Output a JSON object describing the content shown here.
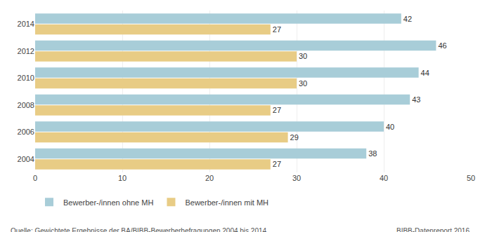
{
  "chart_data": {
    "type": "bar",
    "orientation": "horizontal",
    "categories": [
      "2014",
      "2012",
      "2010",
      "2008",
      "2006",
      "2004"
    ],
    "series": [
      {
        "name": "Bewerber-/innen ohne MH",
        "color": "#a8cdd8",
        "values": [
          42,
          46,
          44,
          43,
          40,
          38
        ]
      },
      {
        "name": "Bewerber-/innen mit MH",
        "color": "#e8cc85",
        "values": [
          27,
          30,
          30,
          27,
          29,
          27
        ]
      }
    ],
    "xlim": [
      0,
      50
    ],
    "xticks": [
      0,
      10,
      20,
      30,
      40,
      50
    ],
    "grid": true,
    "data_labels": true,
    "legend": "bottom",
    "annotations": [
      "Quelle: Gewichtete Ergebnisse der BA/BIBB-Bewerberbefragungen 2004 bis 2014",
      "BIBB-Datenreport 2016"
    ]
  }
}
